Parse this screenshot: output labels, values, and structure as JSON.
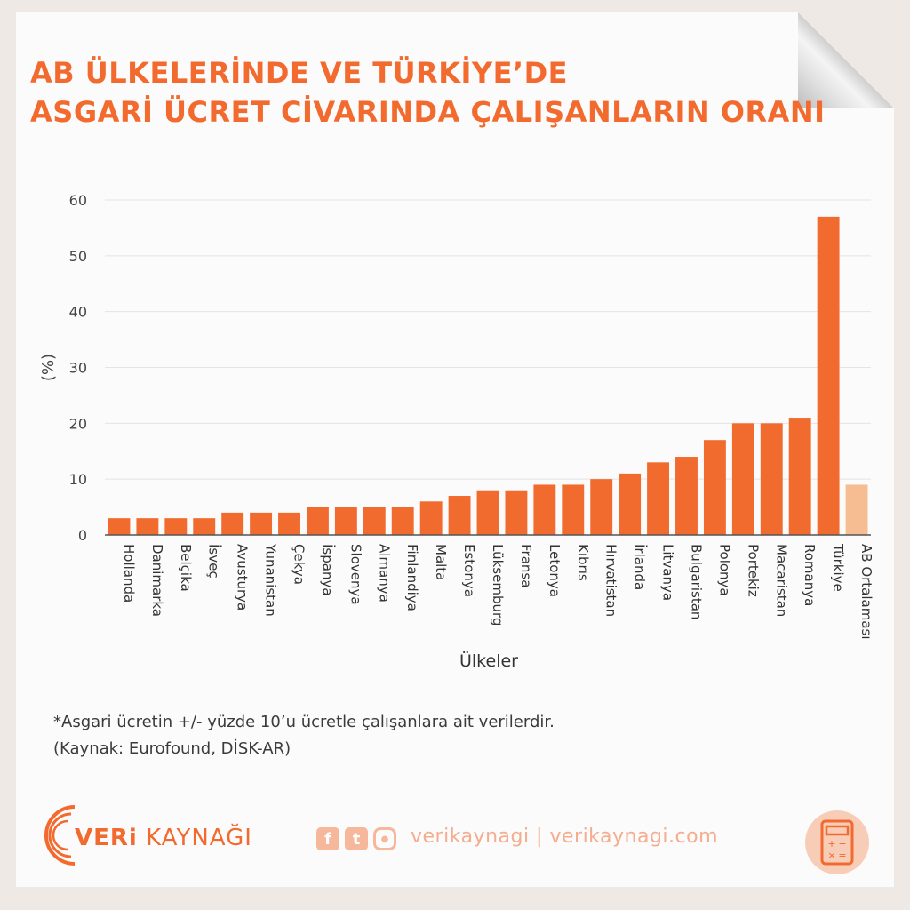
{
  "title_line1": "AB ÜLKELERİNDE VE TÜRKİYE’DE",
  "title_line2": "ASGARİ ÜCRET CİVARINDA ÇALIŞANLARIN ORANI",
  "footnote_line1": "*Asgari ücretin +/- yüzde 10’u ücretle çalışanlara ait verilerdir.",
  "footnote_line2": "(Kaynak: Eurofound, DİSK-AR)",
  "brand": {
    "part1": "VERi",
    "part2": "KAYNAĞI"
  },
  "social": {
    "facebook": "f",
    "twitter": "t",
    "handles": "verikaynagi | verikaynagi.com"
  },
  "icons": [
    "facebook-icon",
    "twitter-icon",
    "instagram-icon",
    "calculator-icon"
  ],
  "colors": {
    "bar": "#f26b2e",
    "highlight": "#f7bd92",
    "grid": "#e4e4e4",
    "title": "#f26a2e"
  },
  "chart_data": {
    "type": "bar",
    "categories": [
      "Hollanda",
      "Danimarka",
      "Belçika",
      "İsveç",
      "Avusturya",
      "Yunanistan",
      "Çekya",
      "İspanya",
      "Slovenya",
      "Almanya",
      "Finlandiya",
      "Malta",
      "Estonya",
      "Lüksemburg",
      "Fransa",
      "Letonya",
      "Kıbrıs",
      "Hırvatistan",
      "İrlanda",
      "Litvanya",
      "Bulgaristan",
      "Polonya",
      "Portekiz",
      "Macaristan",
      "Romanya",
      "Türkiye",
      "AB Ortalaması"
    ],
    "values": [
      3,
      3,
      3,
      3,
      4,
      4,
      4,
      5,
      5,
      5,
      5,
      6,
      7,
      8,
      8,
      9,
      9,
      10,
      11,
      13,
      14,
      17,
      20,
      20,
      21,
      57,
      9
    ],
    "highlight_category": "AB Ortalaması",
    "xlabel": "Ülkeler",
    "ylabel": "(%)",
    "ylim": [
      0,
      60
    ],
    "yticks": [
      0,
      10,
      20,
      30,
      40,
      50,
      60
    ],
    "grid": true
  }
}
